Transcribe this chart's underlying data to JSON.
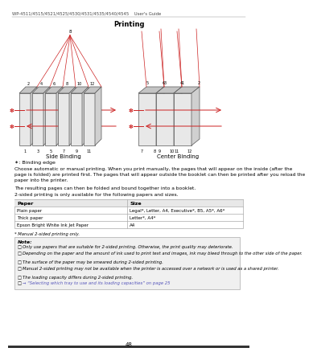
{
  "header_text": "WP-4511/4515/4521/4525/4530/4531/4535/4540/4545    User's Guide",
  "section_title": "Printing",
  "page_number": "48",
  "side_binding_label": "Side Binding",
  "center_binding_label": "Center Binding",
  "binding_edge_note": "✶: Binding edge",
  "para1": "Choose automatic or manual printing. When you print manually, the pages that will appear on the inside (after the\npage is folded) are printed first. The pages that will appear outside the booklet can then be printed after you reload the\npaper into the printer.",
  "para2": "The resulting pages can then be folded and bound together into a booklet.",
  "para3": "2-sided printing is only available for the following papers and sizes.",
  "table_headers": [
    "Paper",
    "Size"
  ],
  "table_rows": [
    [
      "Plain paper",
      "Legal*, Letter, A4, Executive*, B5, A5*, A6*"
    ],
    [
      "Thick paper",
      "Letter*, A4*"
    ],
    [
      "Epson Bright White Ink Jet Paper",
      "A4"
    ]
  ],
  "table_footnote": "* Manual 2-sided printing only.",
  "note_title": "Note:",
  "note_items": [
    "Only use papers that are suitable for 2-sided printing. Otherwise, the print quality may deteriorate.",
    "Depending on the paper and the amount of ink used to print text and images, ink may bleed through to the other side of the paper.",
    "The surface of the paper may be smeared during 2-sided printing.",
    "Manual 2-sided printing may not be available when the printer is accessed over a network or is used as a shared printer.",
    "The loading capacity differs during 2-sided printing.",
    "→ “Selecting which tray to use and its loading capacities” on page 25"
  ],
  "bg_color": "#ffffff",
  "text_color": "#000000",
  "link_color": "#5555bb",
  "red_color": "#cc2222",
  "table_border_color": "#aaaaaa",
  "note_bg_color": "#f0f0f0",
  "note_border_color": "#aaaaaa"
}
